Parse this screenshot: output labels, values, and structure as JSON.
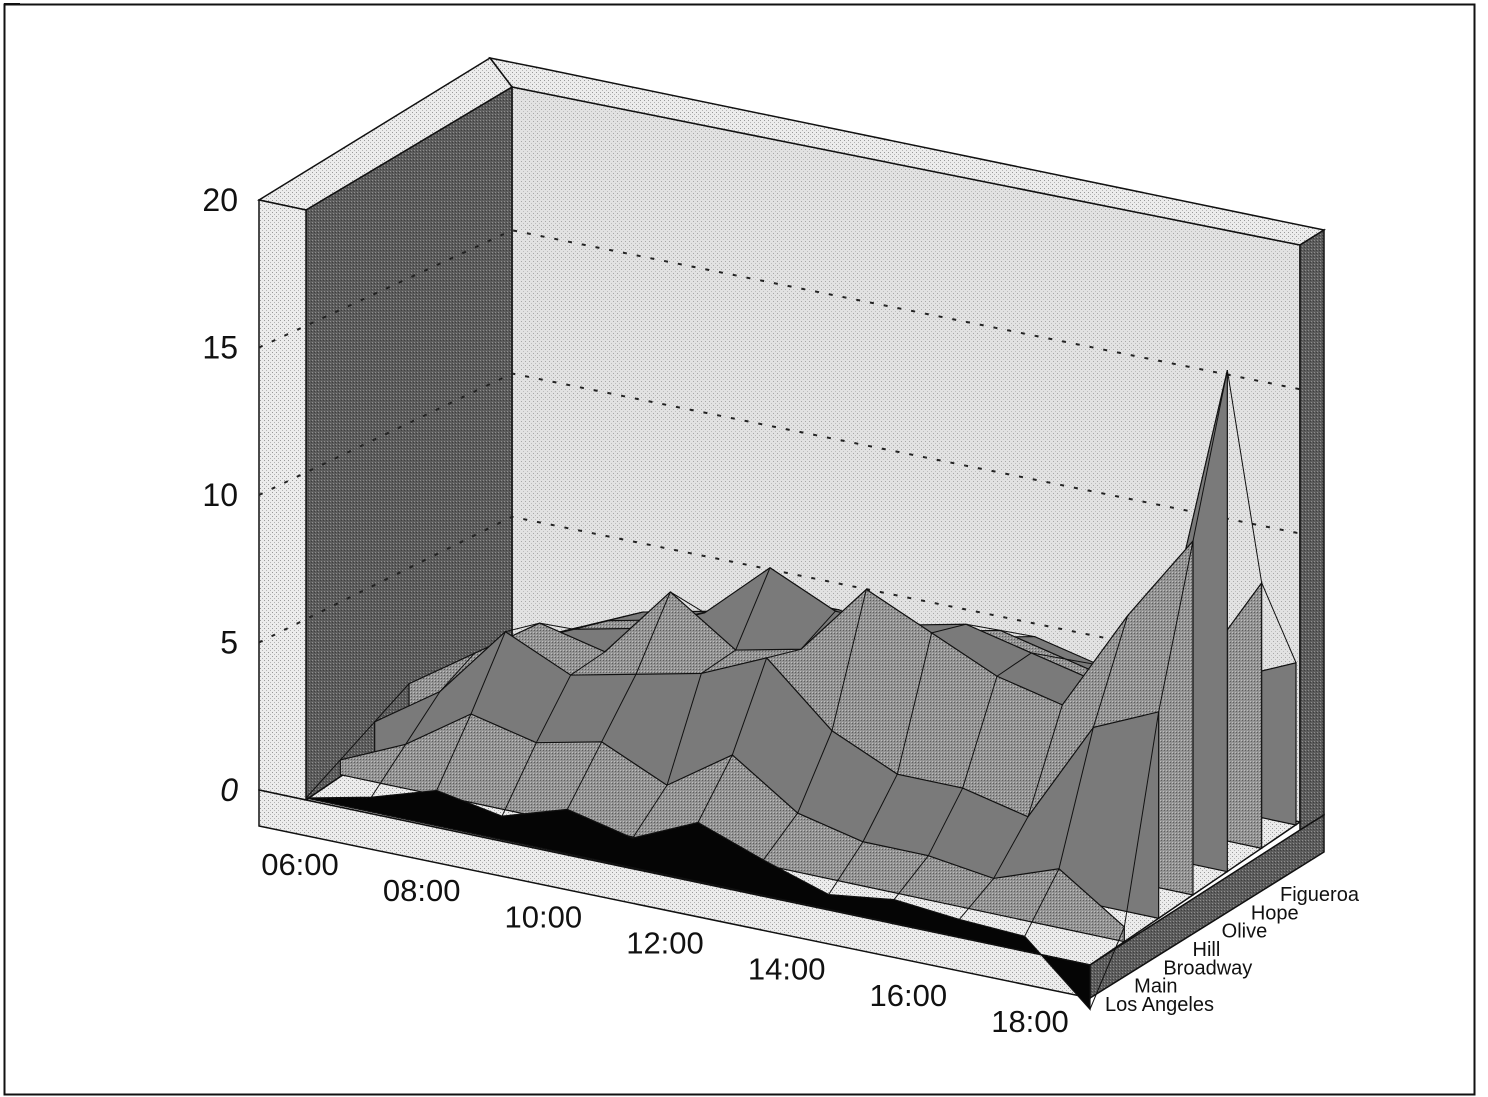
{
  "chart_data": {
    "type": "surface",
    "title": "",
    "x_axis": {
      "label": "",
      "ticks": [
        "06:00",
        "08:00",
        "10:00",
        "12:00",
        "14:00",
        "16:00",
        "18:00"
      ]
    },
    "y_axis": {
      "label": "",
      "ticks": [
        "0",
        "5",
        "10",
        "15",
        "20"
      ],
      "range": [
        0,
        20
      ]
    },
    "depth_axis": {
      "label": "",
      "streets": [
        "Los Angeles",
        "Main",
        "Broadway",
        "Hill",
        "Olive",
        "Hope",
        "Figueroa"
      ]
    },
    "grid": "dotted horizontal on back wall",
    "colors": {
      "front_row": "#050505",
      "surface": "#8a8a8a",
      "back_wall": "#e4e4e4",
      "side_wall": "#6d6d6d",
      "floor": "#ececec"
    },
    "series": [
      {
        "name": "Los Angeles",
        "x": [
          6,
          7,
          8,
          9,
          10,
          11,
          12,
          13,
          14,
          15,
          16,
          17,
          18
        ],
        "values": [
          0.0,
          0.5,
          1.2,
          0.8,
          1.5,
          1.0,
          2.0,
          1.2,
          0.5,
          0.8,
          0.6,
          0.5,
          -1.5
        ]
      },
      {
        "name": "Main",
        "x": [
          6,
          7,
          8,
          9,
          10,
          11,
          12,
          13,
          14,
          15,
          16,
          17,
          18
        ],
        "values": [
          0.5,
          1.5,
          3.0,
          2.5,
          3.0,
          2.0,
          3.5,
          2.0,
          1.5,
          1.5,
          1.2,
          2.0,
          0.5
        ]
      },
      {
        "name": "Broadway",
        "x": [
          6,
          7,
          8,
          9,
          10,
          11,
          12,
          13,
          14,
          15,
          16,
          17,
          18
        ],
        "values": [
          1.0,
          2.5,
          5.0,
          4.0,
          4.5,
          5.0,
          6.0,
          4.0,
          3.0,
          3.0,
          2.5,
          6.0,
          7.0
        ]
      },
      {
        "name": "Hill",
        "x": [
          6,
          7,
          8,
          9,
          10,
          11,
          12,
          13,
          14,
          15,
          16,
          17,
          18
        ],
        "values": [
          1.5,
          3.0,
          4.5,
          4.0,
          6.5,
          5.0,
          5.5,
          8.0,
          7.0,
          6.0,
          5.5,
          9.0,
          12.0
        ]
      },
      {
        "name": "Olive",
        "x": [
          6,
          7,
          8,
          9,
          10,
          11,
          12,
          13,
          14,
          15,
          16,
          17,
          18
        ],
        "values": [
          1.0,
          2.5,
          3.5,
          4.0,
          5.0,
          7.0,
          6.0,
          6.0,
          6.5,
          6.0,
          5.5,
          7.0,
          17.0
        ]
      },
      {
        "name": "Hope",
        "x": [
          6,
          7,
          8,
          9,
          10,
          11,
          12,
          13,
          14,
          15,
          16,
          17,
          18
        ],
        "values": [
          0.8,
          2.0,
          3.0,
          3.5,
          4.0,
          5.0,
          4.5,
          5.0,
          5.5,
          5.0,
          4.5,
          5.5,
          9.0
        ]
      },
      {
        "name": "Figueroa",
        "x": [
          6,
          7,
          8,
          9,
          10,
          11,
          12,
          13,
          14,
          15,
          16,
          17,
          18
        ],
        "values": [
          0.5,
          1.5,
          2.5,
          3.0,
          3.5,
          4.0,
          3.5,
          4.0,
          4.5,
          4.0,
          3.5,
          4.5,
          5.5
        ]
      }
    ]
  }
}
